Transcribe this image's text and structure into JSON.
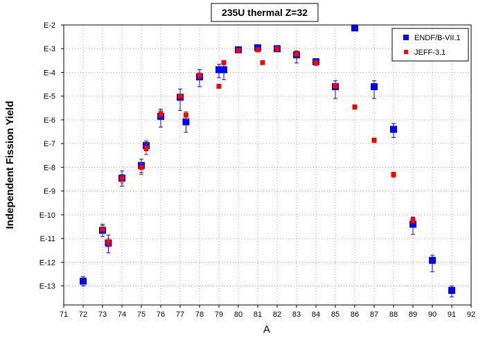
{
  "chart_data": {
    "type": "scatter",
    "title": "235U thermal Z=32",
    "xlabel": "A",
    "ylabel": "Independent Fission Yield",
    "x_ticks": [
      "71",
      "72",
      "73",
      "74",
      "75",
      "76",
      "77",
      "78",
      "79",
      "80",
      "81",
      "82",
      "83",
      "84",
      "85",
      "86",
      "87",
      "88",
      "89",
      "90",
      "91",
      "92"
    ],
    "y_ticks": [
      "E-2",
      "E-3",
      "E-4",
      "E-5",
      "E-6",
      "E-7",
      "E-8",
      "E-9",
      "E-10",
      "E-11",
      "E-12",
      "E-13"
    ],
    "xlim": [
      71,
      92
    ],
    "ylim_exponent": [
      -13.8,
      -2
    ],
    "y_scale": "log",
    "grid": true,
    "legend_position": "top-right",
    "series": [
      {
        "name": "ENDF/B-VII.1",
        "color": "#0000ff",
        "marker": "square-large",
        "points": [
          {
            "x": 72,
            "y": "1.6E-13",
            "err_low": "1.0E-13",
            "err_high": "2.5E-13"
          },
          {
            "x": 73,
            "y": "2.2E-11",
            "err_low": "1.2E-11",
            "err_high": "4.0E-11"
          },
          {
            "x": 73.3,
            "y": "6.5E-12",
            "err_low": "2.5E-12",
            "err_high": "1.4E-11"
          },
          {
            "x": 74,
            "y": "3.5E-9",
            "err_low": "1.6E-9",
            "err_high": "7.0E-9"
          },
          {
            "x": 75,
            "y": "1.2E-8",
            "err_low": "6.0E-9",
            "err_high": "2.2E-8"
          },
          {
            "x": 75.25,
            "y": "8.3E-8",
            "err_low": "5.0E-8",
            "err_high": "1.3E-7"
          },
          {
            "x": 76,
            "y": "1.4E-6",
            "err_low": "5.0E-7",
            "err_high": "2.8E-6"
          },
          {
            "x": 77,
            "y": "9.0E-6",
            "err_low": "2.5E-6",
            "err_high": "2.0E-5"
          },
          {
            "x": 77.3,
            "y": "8.3E-7",
            "err_low": "3.0E-7",
            "err_high": "1.6E-6"
          },
          {
            "x": 78,
            "y": "6.5E-5",
            "err_low": "2.5E-5",
            "err_high": "1.3E-4"
          },
          {
            "x": 79,
            "y": "1.3E-4",
            "err_low": "6.0E-5",
            "err_high": "2.2E-4"
          },
          {
            "x": 79.25,
            "y": "1.3E-4",
            "err_low": "5.0E-5",
            "err_high": "2.6E-4"
          },
          {
            "x": 80,
            "y": "9.0E-4",
            "err_low": "7.5E-4",
            "err_high": "1.1E-3"
          },
          {
            "x": 81,
            "y": "1.1E-3",
            "err_low": "9.0E-4",
            "err_high": "1.3E-3"
          },
          {
            "x": 82,
            "y": "1.0E-3",
            "err_low": "8.0E-4",
            "err_high": "1.25E-3"
          },
          {
            "x": 83,
            "y": "5.5E-4",
            "err_low": "2.5E-4",
            "err_high": "8.0E-4"
          },
          {
            "x": 84,
            "y": "2.8E-4",
            "err_low": "2.0E-4",
            "err_high": "3.8E-4"
          },
          {
            "x": 85,
            "y": "2.5E-5",
            "err_low": "8.0E-6",
            "err_high": "4.5E-5"
          },
          {
            "x": 86,
            "y": "7.5E-3"
          },
          {
            "x": 87,
            "y": "2.5E-5",
            "err_low": "8.0E-6",
            "err_high": "4.5E-5"
          },
          {
            "x": 88,
            "y": "4.0E-7",
            "err_low": "1.8E-7",
            "err_high": "7.0E-7"
          },
          {
            "x": 89,
            "y": "4.0E-11",
            "err_low": "1.5E-11",
            "err_high": "8.0E-11"
          },
          {
            "x": 90,
            "y": "1.2E-12",
            "err_low": "4.0E-13",
            "err_high": "2.0E-12"
          },
          {
            "x": 91,
            "y": "6.5E-14",
            "err_low": "3.5E-14",
            "err_high": "1.0E-13"
          }
        ]
      },
      {
        "name": "JEFF-3.1",
        "color": "#ff0000",
        "marker": "square-small",
        "points": [
          {
            "x": 73,
            "y": "2.5E-11",
            "err_low": "1.6E-11",
            "err_high": "3.5E-11"
          },
          {
            "x": 73.3,
            "y": "7.0E-12",
            "err_low": "4.5E-12",
            "err_high": "1.0E-11"
          },
          {
            "x": 74,
            "y": "3.5E-9",
            "err_low": "2.2E-9",
            "err_high": "5.0E-9"
          },
          {
            "x": 75,
            "y": "1.0E-8",
            "err_low": "5.0E-9",
            "err_high": "1.5E-8"
          },
          {
            "x": 75.25,
            "y": "6.5E-8",
            "err_low": "3.5E-8",
            "err_high": "1.0E-7"
          },
          {
            "x": 76,
            "y": "1.8E-6",
            "err_low": "1.3E-6",
            "err_high": "2.4E-6"
          },
          {
            "x": 77,
            "y": "1.0E-5",
            "err_low": "8.0E-6",
            "err_high": "1.2E-5"
          },
          {
            "x": 77.3,
            "y": "1.6E-6",
            "err_low": "1.1E-6",
            "err_high": "2.2E-6"
          },
          {
            "x": 78,
            "y": "7.5E-5",
            "err_low": "5.5E-5",
            "err_high": "9.5E-5"
          },
          {
            "x": 79,
            "y": "2.6E-5"
          },
          {
            "x": 79.25,
            "y": "2.6E-4"
          },
          {
            "x": 80,
            "y": "8.5E-4"
          },
          {
            "x": 81,
            "y": "9.0E-4"
          },
          {
            "x": 81.25,
            "y": "2.6E-4"
          },
          {
            "x": 82,
            "y": "1.0E-3"
          },
          {
            "x": 83,
            "y": "6.0E-4"
          },
          {
            "x": 84,
            "y": "2.6E-4",
            "err_low": "2.0E-4",
            "err_high": "3.2E-4"
          },
          {
            "x": 85,
            "y": "2.8E-5",
            "err_low": "2.2E-5",
            "err_high": "3.4E-5"
          },
          {
            "x": 86,
            "y": "3.5E-6",
            "err_low": "2.8E-6",
            "err_high": "4.3E-6"
          },
          {
            "x": 87,
            "y": "1.4E-7",
            "err_low": "1.1E-7",
            "err_high": "1.7E-7"
          },
          {
            "x": 88,
            "y": "5.0E-9",
            "err_low": "3.8E-9",
            "err_high": "6.2E-9"
          },
          {
            "x": 89,
            "y": "6.0E-11",
            "err_low": "4.5E-11",
            "err_high": "7.5E-11"
          }
        ]
      }
    ]
  }
}
